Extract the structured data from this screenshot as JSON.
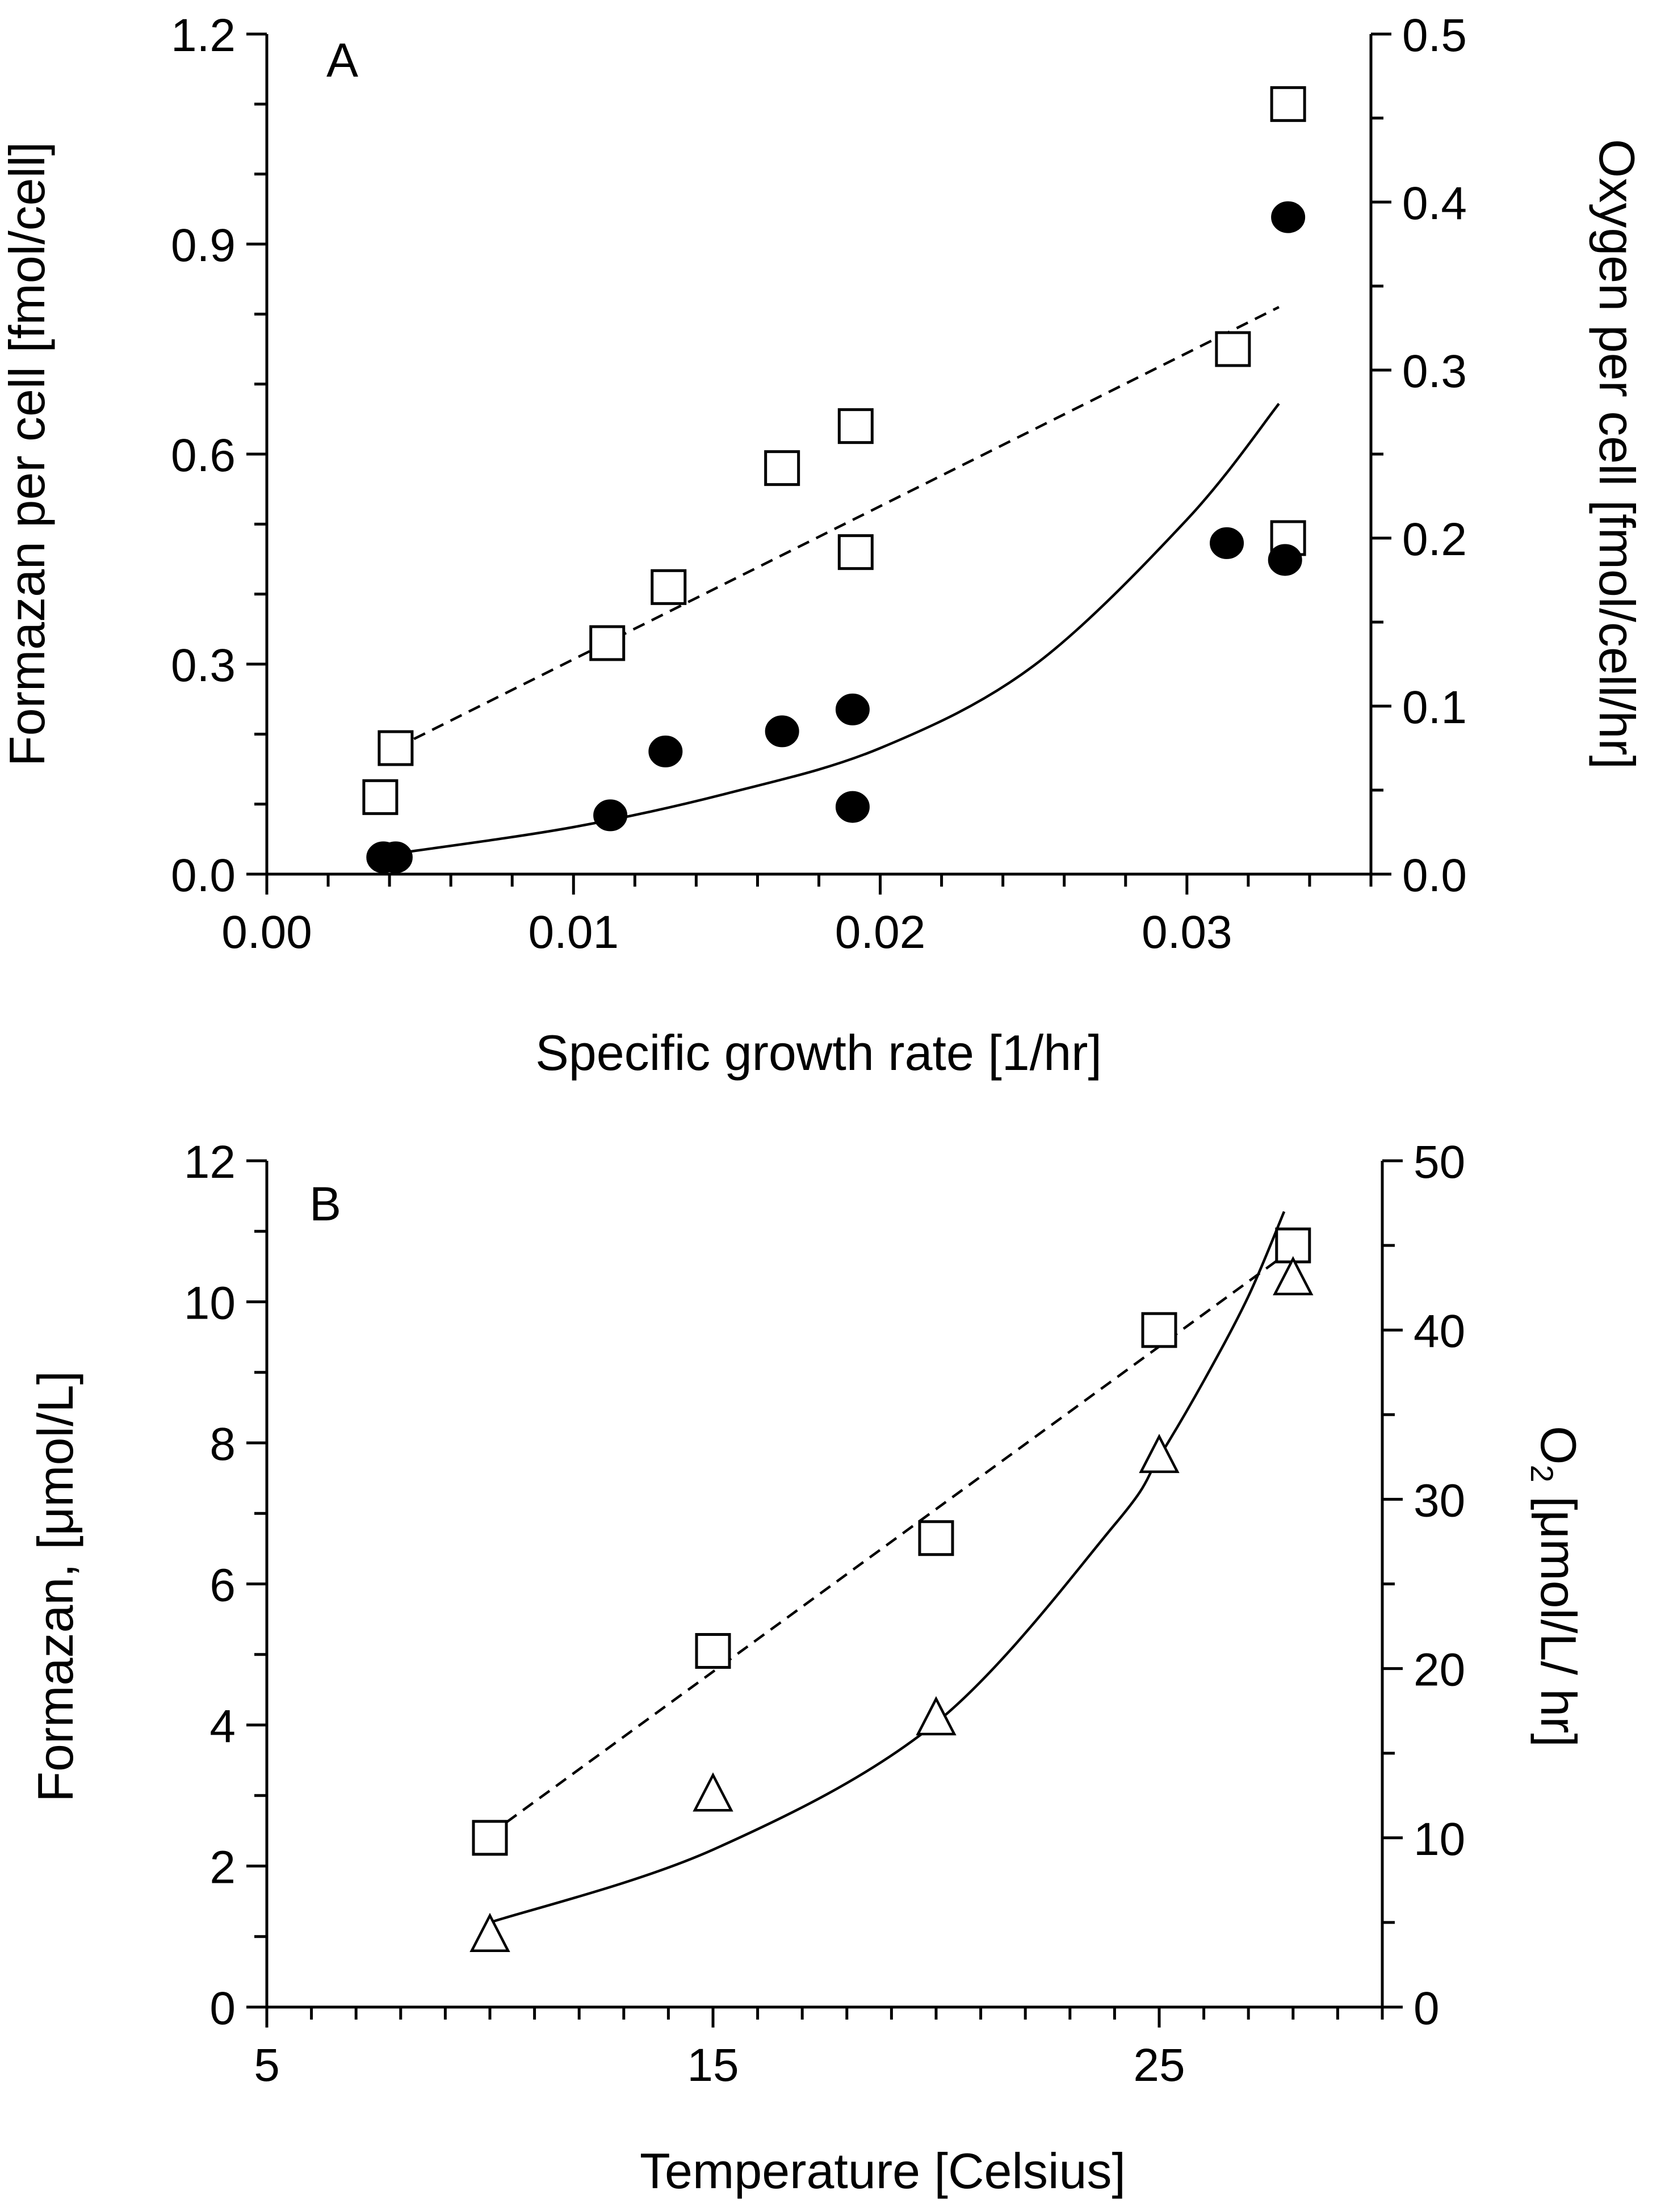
{
  "chart_data": [
    {
      "type": "scatter",
      "panel_label": "A",
      "xlabel": "Specific growth rate  [1/hr]",
      "ylabel_left": "Formazan per cell [fmol/cell]",
      "ylabel_right": "Oxygen per cell [fmol/cell/hr]",
      "xlim": [
        0,
        0.036
      ],
      "ylim_left": [
        0,
        1.2
      ],
      "ylim_right": [
        0,
        0.5
      ],
      "x_ticks": [
        "0.00",
        "0.01",
        "0.02",
        "0.03"
      ],
      "y_ticks_left": [
        "0.0",
        "0.3",
        "0.6",
        "0.9",
        "1.2"
      ],
      "y_ticks_right": [
        "0.0",
        "0.1",
        "0.2",
        "0.3",
        "0.4",
        "0.5"
      ],
      "grid": false,
      "series": [
        {
          "name": "Formazan per cell",
          "axis": "left",
          "marker": "open-square",
          "x": [
            0.0037,
            0.0042,
            0.0111,
            0.0131,
            0.0168,
            0.0192,
            0.0192,
            0.0315,
            0.0333,
            0.0333
          ],
          "y": [
            0.11,
            0.18,
            0.33,
            0.41,
            0.58,
            0.64,
            0.46,
            0.75,
            0.48,
            1.1
          ]
        },
        {
          "name": "Oxygen per cell",
          "axis": "right",
          "marker": "filled-circle",
          "x": [
            0.0038,
            0.0042,
            0.0112,
            0.013,
            0.0168,
            0.0191,
            0.0191,
            0.0313,
            0.0332,
            0.0333
          ],
          "y": [
            0.01,
            0.01,
            0.035,
            0.073,
            0.085,
            0.098,
            0.04,
            0.197,
            0.187,
            0.391
          ]
        }
      ],
      "fits": [
        {
          "name": "Formazan linear fit",
          "style": "dashed",
          "axis": "left",
          "x": [
            0.0042,
            0.033
          ],
          "y": [
            0.18,
            0.81
          ]
        },
        {
          "name": "Oxygen exponential fit",
          "style": "solid",
          "axis": "right",
          "x": [
            0.0045,
            0.01,
            0.015,
            0.02,
            0.025,
            0.03,
            0.033
          ],
          "y": [
            0.013,
            0.028,
            0.048,
            0.075,
            0.124,
            0.211,
            0.28
          ]
        }
      ]
    },
    {
      "type": "scatter",
      "panel_label": "B",
      "xlabel": "Temperature [Celsius]",
      "ylabel_left": "Formazan, [μmol/L]",
      "ylabel_right_main": "O",
      "ylabel_right_sub": "2",
      "ylabel_right_rest": " [μmol/L/ hr]",
      "xlim": [
        5,
        30
      ],
      "ylim_left": [
        0,
        12
      ],
      "ylim_right": [
        0,
        50
      ],
      "x_ticks": [
        "5",
        "15",
        "25"
      ],
      "y_ticks_left": [
        "0",
        "2",
        "4",
        "6",
        "8",
        "10",
        "12"
      ],
      "y_ticks_right": [
        "0",
        "10",
        "20",
        "30",
        "40",
        "50"
      ],
      "grid": false,
      "series": [
        {
          "name": "Formazan",
          "axis": "left",
          "marker": "open-square",
          "x": [
            10,
            15,
            20,
            25,
            28
          ],
          "y": [
            2.4,
            5.05,
            6.65,
            9.6,
            10.8
          ]
        },
        {
          "name": "O2",
          "axis": "right",
          "marker": "open-triangle",
          "x": [
            10,
            15,
            20,
            25,
            28
          ],
          "y": [
            4.2,
            12.5,
            17,
            32.5,
            43
          ]
        }
      ],
      "fits": [
        {
          "name": "Formazan linear fit",
          "style": "dashed",
          "axis": "left",
          "x": [
            10,
            28
          ],
          "y": [
            2.45,
            10.75
          ]
        },
        {
          "name": "O2 exponential fit",
          "style": "solid",
          "axis": "right",
          "x": [
            10,
            15,
            20,
            24,
            25,
            26,
            27,
            27.8
          ],
          "y": [
            5,
            9.3,
            16.8,
            28.5,
            32.5,
            37,
            42,
            47
          ]
        }
      ]
    }
  ]
}
